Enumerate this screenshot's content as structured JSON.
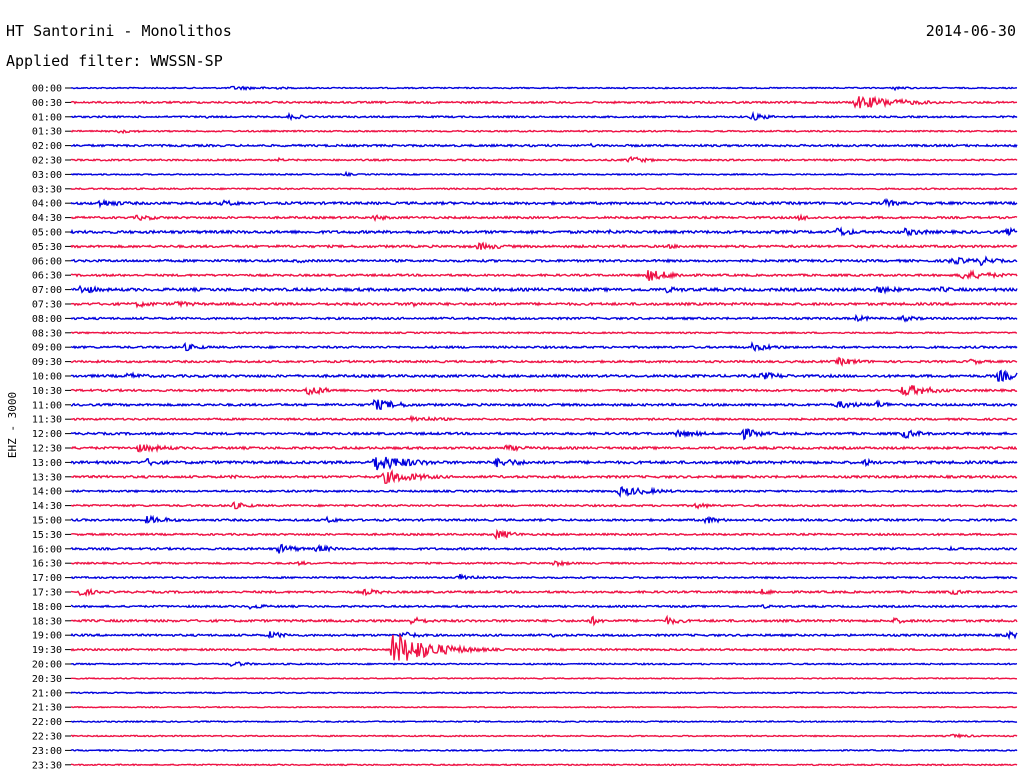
{
  "header": {
    "station": "HT Santorini - Monolithos",
    "date": "2014-06-30",
    "filter": "Applied filter: WWSSN-SP"
  },
  "chart_data": {
    "type": "line",
    "chart_kind": "helicorder",
    "title": "HT Santorini - Monolithos",
    "subtitle": "Applied filter: WWSSN-SP",
    "date": "2014-06-30",
    "ylabel": "EHZ - 3000",
    "colors": {
      "odd_line": "#0000dd",
      "even_line": "#ee1144",
      "axis": "#000000"
    },
    "grid": false,
    "legend": "none",
    "rows": [
      {
        "label": "00:00",
        "color": "blue",
        "noise": 0.6,
        "events": [
          [
            0.17,
            2,
            0.05
          ],
          [
            0.21,
            1.5,
            0.03
          ],
          [
            0.87,
            2,
            0.02
          ]
        ]
      },
      {
        "label": "00:30",
        "color": "red",
        "noise": 0.9,
        "events": [
          [
            0.83,
            7,
            0.05
          ]
        ]
      },
      {
        "label": "01:00",
        "color": "blue",
        "noise": 0.8,
        "events": [
          [
            0.23,
            3,
            0.02
          ],
          [
            0.14,
            2,
            0.01
          ],
          [
            0.72,
            4,
            0.02
          ]
        ]
      },
      {
        "label": "01:30",
        "color": "red",
        "noise": 0.7,
        "events": [
          [
            0.05,
            2,
            0.03
          ]
        ]
      },
      {
        "label": "02:00",
        "color": "blue",
        "noise": 1.0,
        "events": [
          [
            0.55,
            2,
            0.01
          ]
        ]
      },
      {
        "label": "02:30",
        "color": "red",
        "noise": 0.8,
        "events": [
          [
            0.22,
            2,
            0.01
          ],
          [
            0.59,
            4,
            0.02
          ]
        ]
      },
      {
        "label": "03:00",
        "color": "blue",
        "noise": 0.6,
        "events": [
          [
            0.29,
            2,
            0.01
          ]
        ]
      },
      {
        "label": "03:30",
        "color": "red",
        "noise": 0.7,
        "events": []
      },
      {
        "label": "04:00",
        "color": "blue",
        "noise": 1.2,
        "events": [
          [
            0.03,
            4,
            0.03
          ],
          [
            0.16,
            3,
            0.03
          ],
          [
            0.86,
            4,
            0.02
          ]
        ]
      },
      {
        "label": "04:30",
        "color": "red",
        "noise": 1.0,
        "events": [
          [
            0.07,
            3,
            0.03
          ],
          [
            0.32,
            3,
            0.02
          ],
          [
            0.77,
            3,
            0.02
          ]
        ]
      },
      {
        "label": "05:00",
        "color": "blue",
        "noise": 1.3,
        "events": [
          [
            0.57,
            3,
            0.01
          ],
          [
            0.81,
            5,
            0.02
          ],
          [
            0.88,
            4,
            0.03
          ],
          [
            0.99,
            4,
            0.02
          ]
        ]
      },
      {
        "label": "05:30",
        "color": "red",
        "noise": 1.1,
        "events": [
          [
            0.43,
            4,
            0.03
          ],
          [
            0.63,
            2,
            0.04
          ]
        ]
      },
      {
        "label": "06:00",
        "color": "blue",
        "noise": 1.1,
        "events": [
          [
            0.24,
            2,
            0.02
          ],
          [
            0.93,
            4,
            0.03
          ],
          [
            0.96,
            5,
            0.02
          ]
        ]
      },
      {
        "label": "06:30",
        "color": "red",
        "noise": 1.0,
        "events": [
          [
            0.61,
            6,
            0.03
          ],
          [
            0.94,
            5,
            0.04
          ]
        ]
      },
      {
        "label": "07:00",
        "color": "blue",
        "noise": 1.4,
        "events": [
          [
            0.01,
            5,
            0.02
          ],
          [
            0.63,
            3,
            0.03
          ],
          [
            0.85,
            4,
            0.03
          ],
          [
            0.92,
            3,
            0.02
          ]
        ]
      },
      {
        "label": "07:30",
        "color": "red",
        "noise": 1.2,
        "events": [
          [
            0.07,
            3,
            0.03
          ],
          [
            0.11,
            3,
            0.03
          ],
          [
            0.36,
            3,
            0.02
          ]
        ]
      },
      {
        "label": "08:00",
        "color": "blue",
        "noise": 1.0,
        "events": [
          [
            0.83,
            3,
            0.02
          ],
          [
            0.88,
            3,
            0.02
          ]
        ]
      },
      {
        "label": "08:30",
        "color": "red",
        "noise": 0.7,
        "events": []
      },
      {
        "label": "09:00",
        "color": "blue",
        "noise": 1.0,
        "events": [
          [
            0.12,
            4,
            0.02
          ],
          [
            0.72,
            4,
            0.03
          ]
        ]
      },
      {
        "label": "09:30",
        "color": "red",
        "noise": 1.0,
        "events": [
          [
            0.81,
            4,
            0.03
          ],
          [
            0.95,
            3,
            0.02
          ]
        ]
      },
      {
        "label": "10:00",
        "color": "blue",
        "noise": 1.2,
        "events": [
          [
            0.06,
            3,
            0.03
          ],
          [
            0.73,
            4,
            0.03
          ],
          [
            0.98,
            6,
            0.03
          ]
        ]
      },
      {
        "label": "10:30",
        "color": "red",
        "noise": 1.0,
        "events": [
          [
            0.25,
            6,
            0.02
          ],
          [
            0.88,
            7,
            0.03
          ]
        ]
      },
      {
        "label": "11:00",
        "color": "blue",
        "noise": 1.1,
        "events": [
          [
            0.32,
            6,
            0.03
          ],
          [
            0.81,
            4,
            0.03
          ],
          [
            0.85,
            4,
            0.02
          ]
        ]
      },
      {
        "label": "11:30",
        "color": "red",
        "noise": 0.9,
        "events": [
          [
            0.36,
            3,
            0.04
          ]
        ]
      },
      {
        "label": "12:00",
        "color": "blue",
        "noise": 1.1,
        "events": [
          [
            0.64,
            4,
            0.03
          ],
          [
            0.71,
            6,
            0.02
          ],
          [
            0.88,
            5,
            0.02
          ]
        ]
      },
      {
        "label": "12:30",
        "color": "red",
        "noise": 1.1,
        "events": [
          [
            0.07,
            4,
            0.04
          ],
          [
            0.46,
            3,
            0.03
          ]
        ]
      },
      {
        "label": "13:00",
        "color": "blue",
        "noise": 1.3,
        "events": [
          [
            0.08,
            4,
            0.02
          ],
          [
            0.32,
            9,
            0.04
          ],
          [
            0.45,
            5,
            0.03
          ],
          [
            0.84,
            4,
            0.01
          ]
        ]
      },
      {
        "label": "13:30",
        "color": "red",
        "noise": 1.1,
        "events": [
          [
            0.33,
            7,
            0.04
          ],
          [
            0.17,
            2,
            0.02
          ]
        ]
      },
      {
        "label": "14:00",
        "color": "blue",
        "noise": 0.9,
        "events": [
          [
            0.58,
            5,
            0.04
          ]
        ]
      },
      {
        "label": "14:30",
        "color": "red",
        "noise": 0.9,
        "events": [
          [
            0.17,
            4,
            0.02
          ],
          [
            0.66,
            3,
            0.02
          ]
        ]
      },
      {
        "label": "15:00",
        "color": "blue",
        "noise": 1.0,
        "events": [
          [
            0.08,
            4,
            0.03
          ],
          [
            0.27,
            3,
            0.02
          ],
          [
            0.67,
            4,
            0.02
          ]
        ]
      },
      {
        "label": "15:30",
        "color": "red",
        "noise": 0.9,
        "events": [
          [
            0.45,
            5,
            0.02
          ]
        ]
      },
      {
        "label": "16:00",
        "color": "blue",
        "noise": 1.0,
        "events": [
          [
            0.22,
            5,
            0.02
          ],
          [
            0.26,
            4,
            0.02
          ],
          [
            0.93,
            2,
            0.02
          ]
        ]
      },
      {
        "label": "16:30",
        "color": "red",
        "noise": 0.8,
        "events": [
          [
            0.51,
            3,
            0.02
          ],
          [
            0.24,
            2,
            0.02
          ]
        ]
      },
      {
        "label": "17:00",
        "color": "blue",
        "noise": 0.8,
        "events": [
          [
            0.41,
            4,
            0.02
          ]
        ]
      },
      {
        "label": "17:30",
        "color": "red",
        "noise": 1.0,
        "events": [
          [
            0.01,
            4,
            0.02
          ],
          [
            0.31,
            3,
            0.03
          ],
          [
            0.73,
            3,
            0.02
          ],
          [
            0.93,
            3,
            0.02
          ]
        ]
      },
      {
        "label": "18:00",
        "color": "blue",
        "noise": 0.9,
        "events": [
          [
            0.19,
            3,
            0.02
          ],
          [
            0.73,
            2,
            0.02
          ]
        ]
      },
      {
        "label": "18:30",
        "color": "red",
        "noise": 1.1,
        "events": [
          [
            0.36,
            4,
            0.02
          ],
          [
            0.55,
            5,
            0.01
          ],
          [
            0.63,
            4,
            0.02
          ],
          [
            0.87,
            3,
            0.02
          ]
        ]
      },
      {
        "label": "19:00",
        "color": "blue",
        "noise": 1.0,
        "events": [
          [
            0.21,
            4,
            0.02
          ],
          [
            0.35,
            4,
            0.02
          ],
          [
            0.51,
            2,
            0.02
          ],
          [
            0.99,
            4,
            0.02
          ]
        ]
      },
      {
        "label": "19:30",
        "color": "red",
        "noise": 0.9,
        "events": [
          [
            0.34,
            18,
            0.04
          ]
        ]
      },
      {
        "label": "20:00",
        "color": "blue",
        "noise": 0.7,
        "events": [
          [
            0.17,
            3,
            0.02
          ]
        ]
      },
      {
        "label": "20:30",
        "color": "red",
        "noise": 0.5,
        "events": []
      },
      {
        "label": "21:00",
        "color": "blue",
        "noise": 0.6,
        "events": []
      },
      {
        "label": "21:30",
        "color": "red",
        "noise": 0.5,
        "events": []
      },
      {
        "label": "22:00",
        "color": "blue",
        "noise": 0.6,
        "events": []
      },
      {
        "label": "22:30",
        "color": "red",
        "noise": 0.6,
        "events": [
          [
            0.93,
            2,
            0.03
          ]
        ]
      },
      {
        "label": "23:00",
        "color": "blue",
        "noise": 0.6,
        "events": []
      },
      {
        "label": "23:30",
        "color": "red",
        "noise": 0.6,
        "events": []
      }
    ]
  }
}
